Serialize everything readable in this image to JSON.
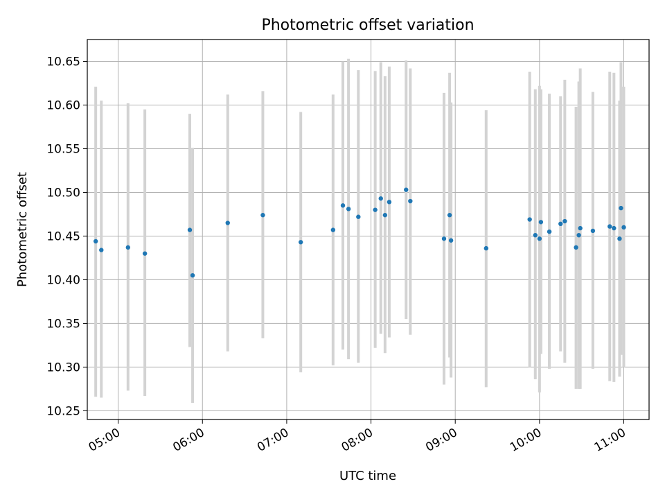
{
  "chart_data": {
    "type": "scatter",
    "title": "Photometric offset variation",
    "xlabel": "UTC time",
    "ylabel": "Photometric offset",
    "x_unit": "UTC time (HH:MM)",
    "xlim": [
      "04:38",
      "11:18"
    ],
    "ylim": [
      10.24,
      10.675
    ],
    "x_ticks": [
      "05:00",
      "06:00",
      "07:00",
      "08:00",
      "09:00",
      "10:00",
      "11:00"
    ],
    "y_ticks": [
      "10.25",
      "10.30",
      "10.35",
      "10.40",
      "10.45",
      "10.50",
      "10.55",
      "10.60",
      "10.65"
    ],
    "grid": true,
    "legend": "none",
    "colors": {
      "marker": "#1f77b4",
      "errorbar": "#d3d3d3",
      "grid": "#b0b0b0"
    },
    "points": [
      {
        "time": "04:44",
        "y": 10.444,
        "lo": 10.266,
        "hi": 10.621
      },
      {
        "time": "04:48",
        "y": 10.434,
        "lo": 10.265,
        "hi": 10.605
      },
      {
        "time": "05:07",
        "y": 10.437,
        "lo": 10.273,
        "hi": 10.602
      },
      {
        "time": "05:19",
        "y": 10.43,
        "lo": 10.267,
        "hi": 10.595
      },
      {
        "time": "05:51",
        "y": 10.457,
        "lo": 10.323,
        "hi": 10.59
      },
      {
        "time": "05:53",
        "y": 10.405,
        "lo": 10.259,
        "hi": 10.551
      },
      {
        "time": "06:18",
        "y": 10.465,
        "lo": 10.318,
        "hi": 10.612
      },
      {
        "time": "06:43",
        "y": 10.474,
        "lo": 10.333,
        "hi": 10.616
      },
      {
        "time": "07:10",
        "y": 10.443,
        "lo": 10.294,
        "hi": 10.592
      },
      {
        "time": "07:33",
        "y": 10.457,
        "lo": 10.302,
        "hi": 10.612
      },
      {
        "time": "07:40",
        "y": 10.485,
        "lo": 10.32,
        "hi": 10.65
      },
      {
        "time": "07:44",
        "y": 10.481,
        "lo": 10.309,
        "hi": 10.653
      },
      {
        "time": "07:51",
        "y": 10.472,
        "lo": 10.305,
        "hi": 10.64
      },
      {
        "time": "08:03",
        "y": 10.48,
        "lo": 10.322,
        "hi": 10.639
      },
      {
        "time": "08:07",
        "y": 10.493,
        "lo": 10.338,
        "hi": 10.649
      },
      {
        "time": "08:10",
        "y": 10.474,
        "lo": 10.316,
        "hi": 10.633
      },
      {
        "time": "08:13",
        "y": 10.489,
        "lo": 10.334,
        "hi": 10.644
      },
      {
        "time": "08:25",
        "y": 10.503,
        "lo": 10.355,
        "hi": 10.651
      },
      {
        "time": "08:28",
        "y": 10.49,
        "lo": 10.337,
        "hi": 10.642
      },
      {
        "time": "08:52",
        "y": 10.447,
        "lo": 10.28,
        "hi": 10.614
      },
      {
        "time": "08:56",
        "y": 10.474,
        "lo": 10.311,
        "hi": 10.637
      },
      {
        "time": "08:57",
        "y": 10.445,
        "lo": 10.288,
        "hi": 10.603
      },
      {
        "time": "09:22",
        "y": 10.436,
        "lo": 10.277,
        "hi": 10.594
      },
      {
        "time": "09:53",
        "y": 10.469,
        "lo": 10.3,
        "hi": 10.638
      },
      {
        "time": "09:57",
        "y": 10.451,
        "lo": 10.286,
        "hi": 10.618
      },
      {
        "time": "10:00",
        "y": 10.447,
        "lo": 10.271,
        "hi": 10.622
      },
      {
        "time": "10:01",
        "y": 10.466,
        "lo": 10.315,
        "hi": 10.618
      },
      {
        "time": "10:07",
        "y": 10.455,
        "lo": 10.298,
        "hi": 10.613
      },
      {
        "time": "10:15",
        "y": 10.464,
        "lo": 10.318,
        "hi": 10.61
      },
      {
        "time": "10:18",
        "y": 10.467,
        "lo": 10.305,
        "hi": 10.629
      },
      {
        "time": "10:26",
        "y": 10.437,
        "lo": 10.275,
        "hi": 10.598
      },
      {
        "time": "10:28",
        "y": 10.451,
        "lo": 10.275,
        "hi": 10.627
      },
      {
        "time": "10:29",
        "y": 10.459,
        "lo": 10.275,
        "hi": 10.642
      },
      {
        "time": "10:38",
        "y": 10.456,
        "lo": 10.298,
        "hi": 10.615
      },
      {
        "time": "10:50",
        "y": 10.461,
        "lo": 10.284,
        "hi": 10.638
      },
      {
        "time": "10:53",
        "y": 10.459,
        "lo": 10.283,
        "hi": 10.637
      },
      {
        "time": "10:57",
        "y": 10.447,
        "lo": 10.289,
        "hi": 10.605
      },
      {
        "time": "10:58",
        "y": 10.482,
        "lo": 10.314,
        "hi": 10.649
      },
      {
        "time": "11:00",
        "y": 10.46,
        "lo": 10.3,
        "hi": 10.621
      }
    ]
  }
}
